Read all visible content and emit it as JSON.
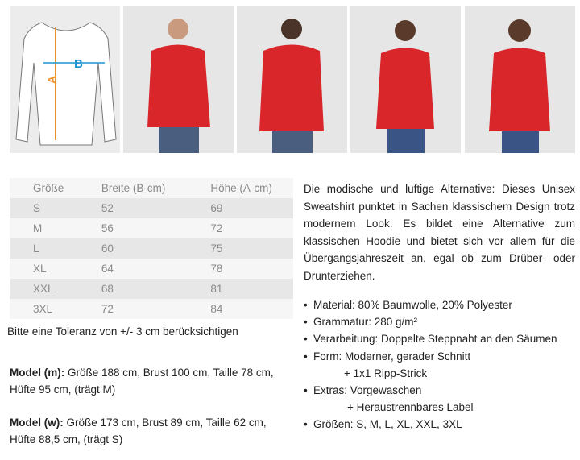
{
  "size_diagram": {
    "label_a": "A",
    "label_b": "B",
    "color_a": "#f0922b",
    "color_b": "#1f93d1"
  },
  "photos": [
    "Model (m) front",
    "Model (m) back",
    "Model (w) front",
    "Model (w) back"
  ],
  "garment_color": "#d9262b",
  "size_table": {
    "headers": [
      "Größe",
      "Breite (B-cm)",
      "Höhe (A-cm)"
    ],
    "rows": [
      [
        "S",
        "52",
        "69"
      ],
      [
        "M",
        "56",
        "72"
      ],
      [
        "L",
        "60",
        "75"
      ],
      [
        "XL",
        "64",
        "78"
      ],
      [
        "XXL",
        "68",
        "81"
      ],
      [
        "3XL",
        "72",
        "84"
      ]
    ]
  },
  "tolerance_note": "Bitte eine Toleranz von +/- 3 cm berücksichtigen",
  "model_m": {
    "label": "Model (m):",
    "text": "Größe 188 cm, Brust 100 cm, Taille 78 cm, Hüfte 95 cm, (trägt M)"
  },
  "model_w": {
    "label": "Model (w):",
    "text": "Größe 173 cm, Brust 89 cm, Taille 62 cm, Hüfte 88,5 cm, (trägt S)"
  },
  "description": "Die modische und luftige Alternative: Dieses Unisex Sweatshirt punktet in Sachen klassischem Design trotz modernem Look. Es bildet eine Alternative zum klassischen Hoodie und bietet sich vor allem für die Übergangsjahreszeit an, egal ob zum Drüber- oder Drunterziehen.",
  "features": [
    {
      "text": "Material: 80% Baumwolle, 20% Polyester"
    },
    {
      "text": "Grammatur: 280 g/m²"
    },
    {
      "text": "Verarbeitung: Doppelte Steppnaht an den Säumen"
    },
    {
      "text": "Form: Moderner, gerader Schnitt",
      "sub": "+ 1x1 Ripp-Strick"
    },
    {
      "text": "Extras: Vorgewaschen",
      "sub": "+ Heraustrennbares Label"
    },
    {
      "text": "Größen:  S, M, L, XL, XXL, 3XL"
    }
  ],
  "bullet": "•"
}
